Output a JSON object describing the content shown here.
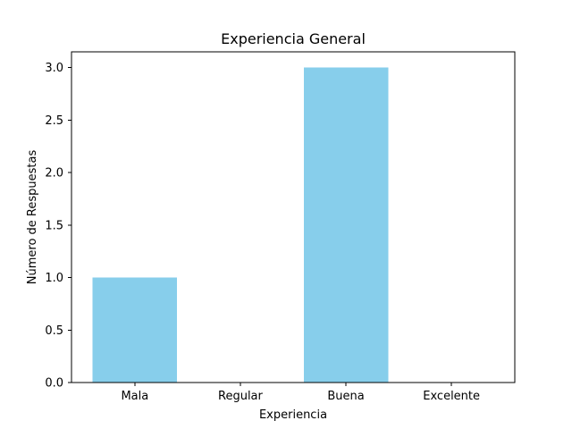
{
  "chart_data": {
    "type": "bar",
    "title": "Experiencia General",
    "xlabel": "Experiencia",
    "ylabel": "Número de Respuestas",
    "categories": [
      "Mala",
      "Regular",
      "Buena",
      "Excelente"
    ],
    "values": [
      1,
      0,
      3,
      0
    ],
    "ylim": [
      0,
      3.15
    ],
    "yticks": [
      "0.0",
      "0.5",
      "1.0",
      "1.5",
      "2.0",
      "2.5",
      "3.0"
    ],
    "bar_color": "#87CEEB",
    "grid": false,
    "legend": "none"
  }
}
